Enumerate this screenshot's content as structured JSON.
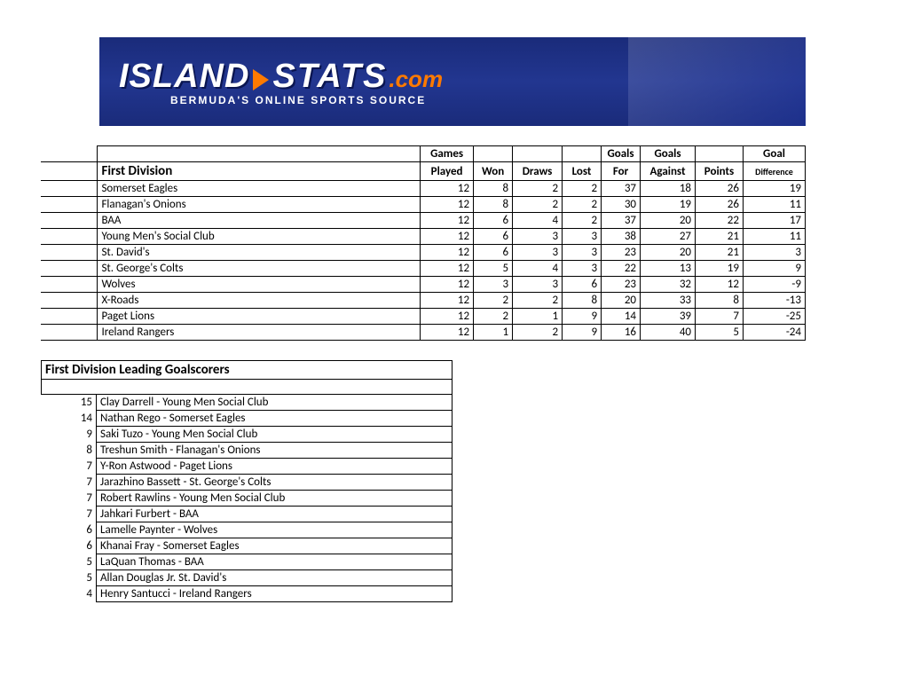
{
  "banner": {
    "island": "ISLAND",
    "stats": "STATS",
    "com": ".com",
    "tagline": "BERMUDA'S ONLINE SPORTS SOURCE",
    "bg_gradient": [
      "#1a2b7a",
      "#223690"
    ],
    "accent_color": "#ff7a00",
    "text_color": "#ffffff"
  },
  "standings": {
    "title": "First Division",
    "header_row1": {
      "games": "Games",
      "goals_for": "Goals",
      "goals_against": "Goals",
      "goal": "Goal"
    },
    "header_row2": {
      "played": "Played",
      "won": "Won",
      "draws": "Draws",
      "lost": "Lost",
      "for": "For",
      "against": "Against",
      "points": "Points",
      "difference": "Difference"
    },
    "columns": [
      "team",
      "played",
      "won",
      "draws",
      "lost",
      "for",
      "against",
      "points",
      "diff"
    ],
    "rows": [
      {
        "team": "Somerset Eagles",
        "played": 12,
        "won": 8,
        "draws": 2,
        "lost": 2,
        "for": 37,
        "against": 18,
        "points": 26,
        "diff": 19
      },
      {
        "team": "Flanagan's Onions",
        "played": 12,
        "won": 8,
        "draws": 2,
        "lost": 2,
        "for": 30,
        "against": 19,
        "points": 26,
        "diff": 11
      },
      {
        "team": "BAA",
        "played": 12,
        "won": 6,
        "draws": 4,
        "lost": 2,
        "for": 37,
        "against": 20,
        "points": 22,
        "diff": 17
      },
      {
        "team": "Young Men's Social Club",
        "played": 12,
        "won": 6,
        "draws": 3,
        "lost": 3,
        "for": 38,
        "against": 27,
        "points": 21,
        "diff": 11
      },
      {
        "team": "St. David's",
        "played": 12,
        "won": 6,
        "draws": 3,
        "lost": 3,
        "for": 23,
        "against": 20,
        "points": 21,
        "diff": 3
      },
      {
        "team": "St. George's Colts",
        "played": 12,
        "won": 5,
        "draws": 4,
        "lost": 3,
        "for": 22,
        "against": 13,
        "points": 19,
        "diff": 9
      },
      {
        "team": "Wolves",
        "played": 12,
        "won": 3,
        "draws": 3,
        "lost": 6,
        "for": 23,
        "against": 32,
        "points": 12,
        "diff": -9
      },
      {
        "team": "X-Roads",
        "played": 12,
        "won": 2,
        "draws": 2,
        "lost": 8,
        "for": 20,
        "against": 33,
        "points": 8,
        "diff": -13
      },
      {
        "team": "Paget Lions",
        "played": 12,
        "won": 2,
        "draws": 1,
        "lost": 9,
        "for": 14,
        "against": 39,
        "points": 7,
        "diff": -25
      },
      {
        "team": "Ireland Rangers",
        "played": 12,
        "won": 1,
        "draws": 2,
        "lost": 9,
        "for": 16,
        "against": 40,
        "points": 5,
        "diff": -24
      }
    ],
    "border_color": "#000000",
    "background_color": "#ffffff"
  },
  "scorers": {
    "title": "First Division Leading Goalscorers",
    "rows": [
      {
        "goals": 15,
        "player": "Clay Darrell - Young Men Social Club"
      },
      {
        "goals": 14,
        "player": "Nathan Rego - Somerset Eagles"
      },
      {
        "goals": 9,
        "player": "Saki Tuzo - Young Men Social Club"
      },
      {
        "goals": 8,
        "player": "Treshun Smith - Flanagan's Onions"
      },
      {
        "goals": 7,
        "player": "Y-Ron Astwood - Paget Lions"
      },
      {
        "goals": 7,
        "player": "Jarazhino Bassett - St. George's Colts"
      },
      {
        "goals": 7,
        "player": "Robert Rawlins - Young Men Social Club"
      },
      {
        "goals": 7,
        "player": "Jahkari Furbert - BAA"
      },
      {
        "goals": 6,
        "player": "Lamelle Paynter - Wolves"
      },
      {
        "goals": 6,
        "player": "Khanai Fray - Somerset Eagles"
      },
      {
        "goals": 5,
        "player": "LaQuan Thomas - BAA"
      },
      {
        "goals": 5,
        "player": "Allan Douglas Jr. St. David's"
      },
      {
        "goals": 4,
        "player": "Henry Santucci - Ireland Rangers"
      }
    ]
  }
}
